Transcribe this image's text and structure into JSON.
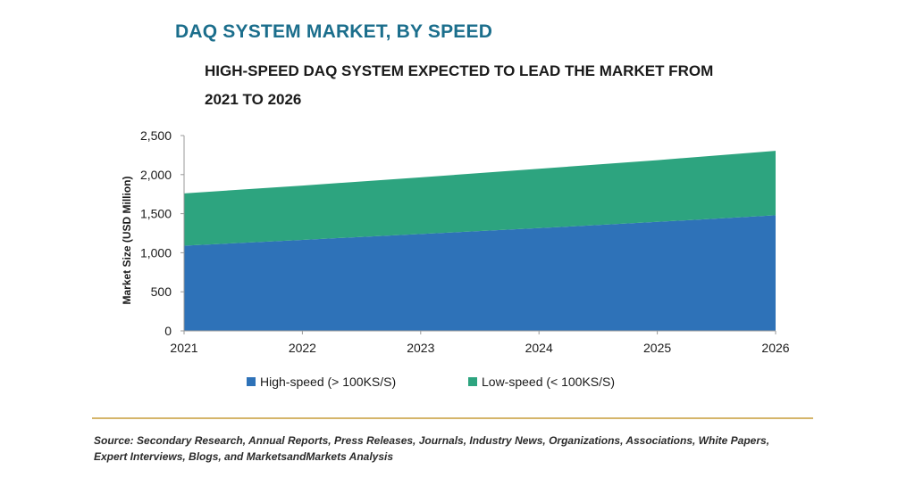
{
  "header": {
    "title": "DAQ SYSTEM MARKET, BY SPEED",
    "subtitle_line1": "HIGH-SPEED DAQ SYSTEM EXPECTED TO LEAD THE MARKET FROM",
    "subtitle_line2": "2021 TO 2026"
  },
  "chart_data": {
    "type": "area",
    "stacked": true,
    "x": [
      "2021",
      "2022",
      "2023",
      "2024",
      "2025",
      "2026"
    ],
    "series": [
      {
        "name": "High-speed (> 100KS/S)",
        "values": [
          1090,
          1165,
          1240,
          1315,
          1395,
          1480
        ],
        "color": "#2e72b8"
      },
      {
        "name": "Low-speed (< 100KS/S)",
        "values": [
          670,
          695,
          725,
          760,
          790,
          825
        ],
        "color": "#2da47f"
      }
    ],
    "ylabel": "Market Size (USD Million)",
    "ylim": [
      0,
      2500
    ],
    "yticks": [
      "0",
      "500",
      "1,000",
      "1,500",
      "2,000",
      "2,500"
    ],
    "grid": false,
    "legend_position": "bottom"
  },
  "footer": {
    "source_line1": "Source: Secondary Research, Annual Reports, Press Releases, Journals, Industry News, Organizations, Associations, White Papers,",
    "source_line2": "Expert Interviews, Blogs, and MarketsandMarkets Analysis"
  }
}
